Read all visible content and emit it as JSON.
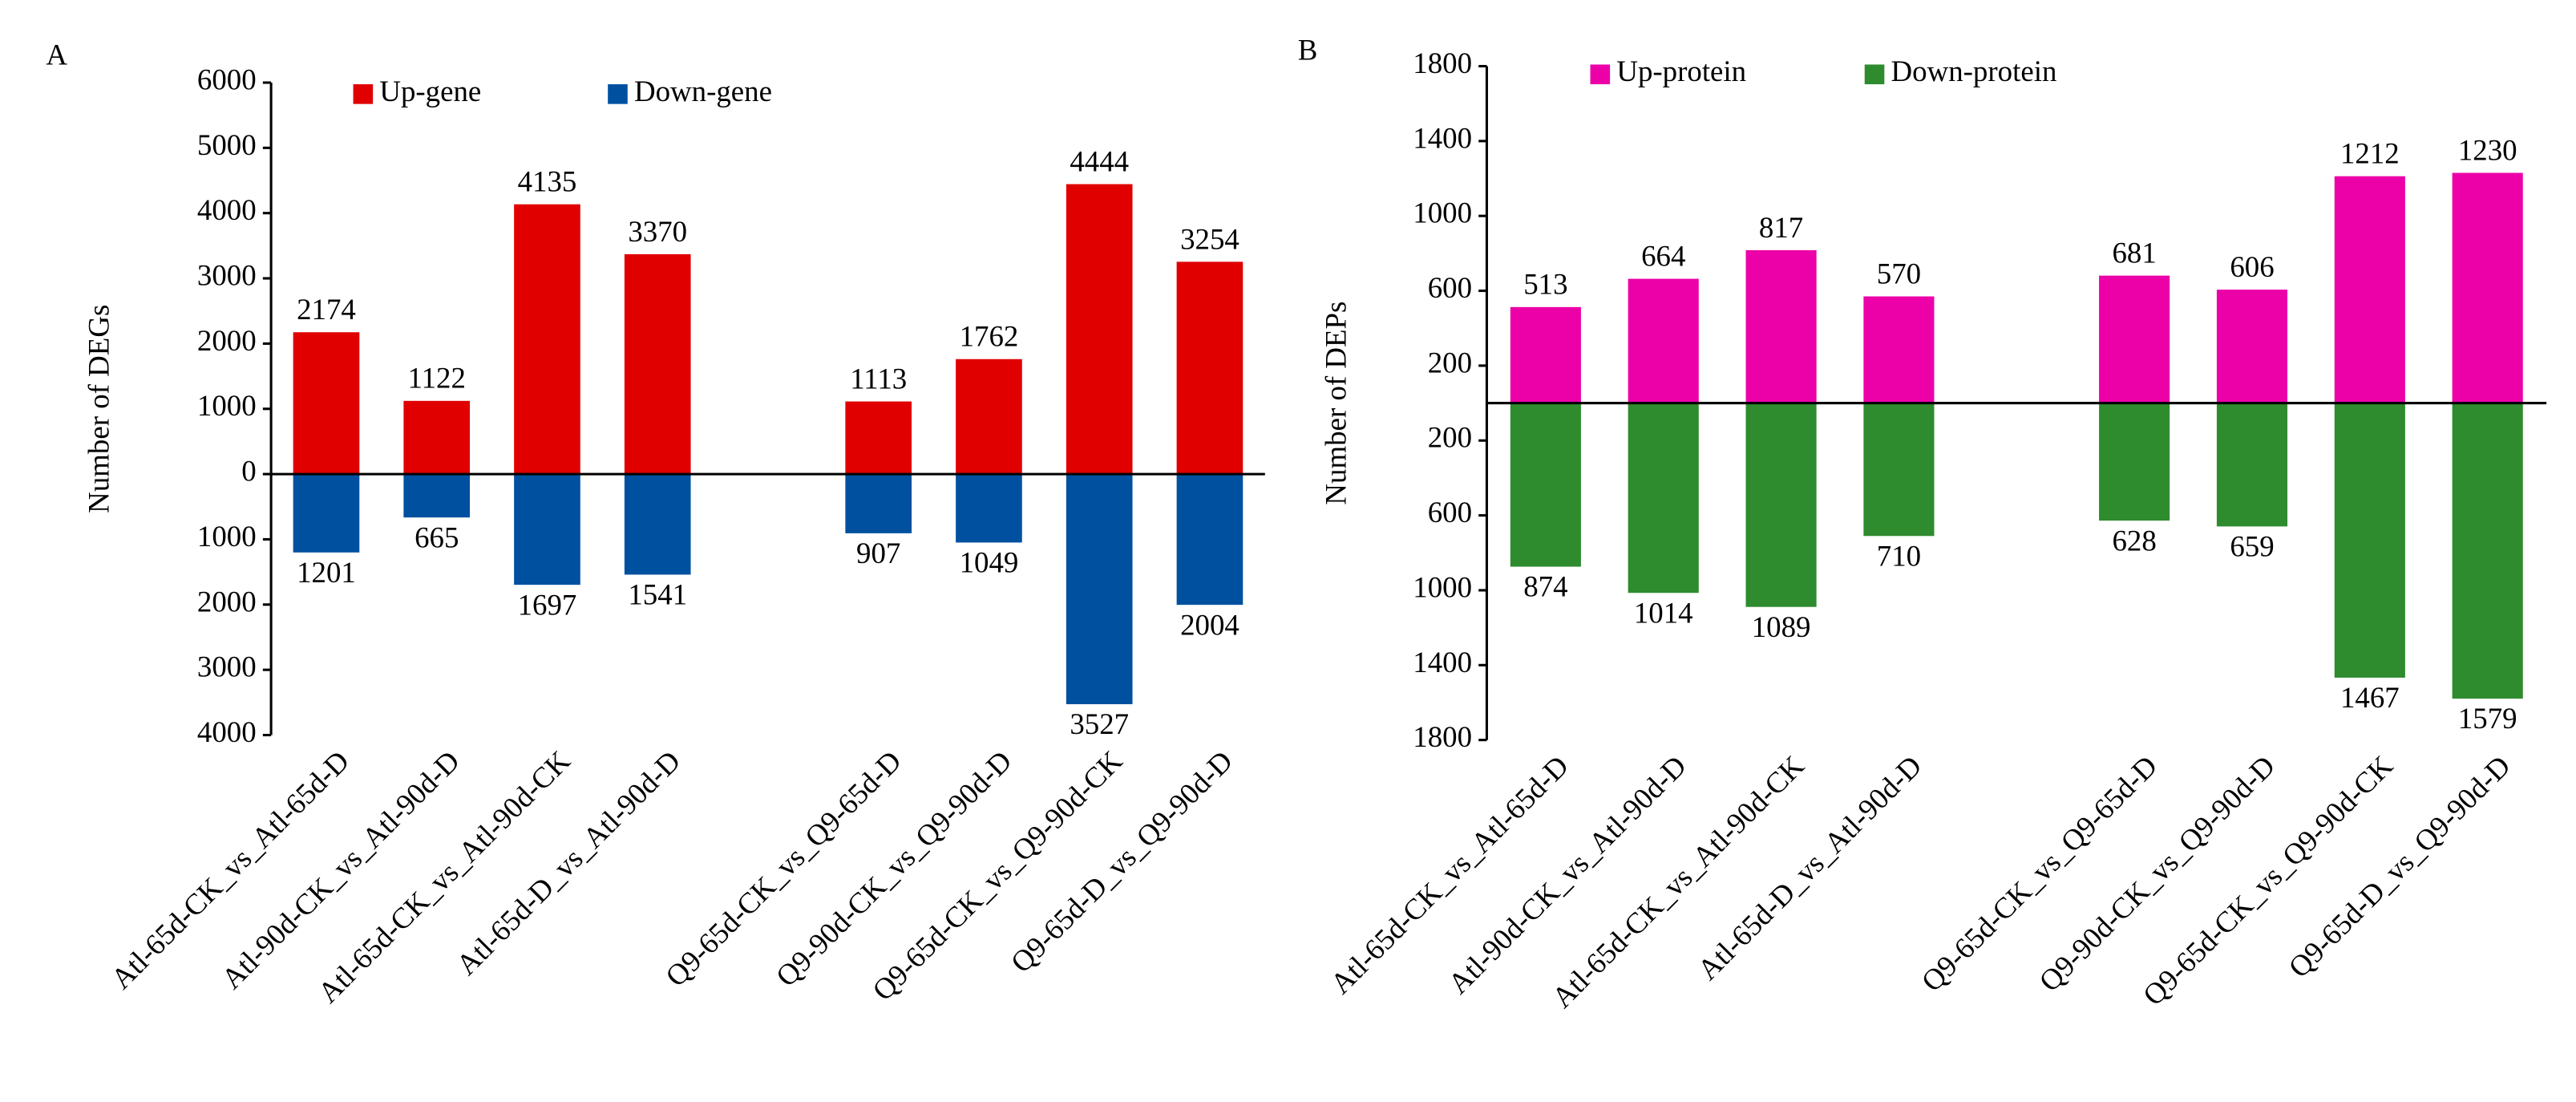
{
  "chart_data": [
    {
      "type": "bar",
      "panel_label": "A",
      "ylabel": "Number of DEGs",
      "categories": [
        "Atl-65d-CK_vs_Atl-65d-D",
        "Atl-90d-CK_vs_Atl-90d-D",
        "Atl-65d-CK_vs_Atl-90d-CK",
        "Atl-65d-D_vs_Atl-90d-D",
        null,
        "Q9-65d-CK_vs_Q9-65d-D",
        "Q9-90d-CK_vs_Q9-90d-D",
        "Q9-65d-CK_vs_Q9-90d-CK",
        "Q9-65d-D_vs_Q9-90d-D"
      ],
      "series": [
        {
          "name": "Up-gene",
          "color": "#e00000",
          "values": [
            2174,
            1122,
            4135,
            3370,
            null,
            1113,
            1762,
            4444,
            3254
          ]
        },
        {
          "name": "Down-gene",
          "color": "#0050a0",
          "values": [
            -1201,
            -665,
            -1697,
            -1541,
            null,
            -907,
            -1049,
            -3527,
            -2004
          ],
          "value_labels": [
            "1201",
            "665",
            "1697",
            "1541",
            null,
            "907",
            "1049",
            "3527",
            "2004"
          ]
        }
      ],
      "ylim": [
        -4000,
        6000
      ],
      "yticks": [
        6000,
        5000,
        4000,
        3000,
        2000,
        1000,
        0,
        {
          "value": -1000,
          "label": "1000"
        },
        {
          "value": -2000,
          "label": "2000"
        },
        {
          "value": -3000,
          "label": "3000"
        },
        {
          "value": -4000,
          "label": "4000"
        }
      ],
      "legend": "top"
    },
    {
      "type": "bar",
      "panel_label": "B",
      "ylabel": "Number of DEPs",
      "categories": [
        "Atl-65d-CK_vs_Atl-65d-D",
        "Atl-90d-CK_vs_Atl-90d-D",
        "Atl-65d-CK_vs_Atl-90d-CK",
        "Atl-65d-D_vs_Atl-90d-D",
        null,
        "Q9-65d-CK_vs_Q9-65d-D",
        "Q9-90d-CK_vs_Q9-90d-D",
        "Q9-65d-CK_vs_Q9-90d-CK",
        "Q9-65d-D_vs_Q9-90d-D"
      ],
      "series": [
        {
          "name": "Up-protein",
          "color": "#ec00a8",
          "values": [
            513,
            664,
            817,
            570,
            null,
            681,
            606,
            1212,
            1230
          ]
        },
        {
          "name": "Down-protein",
          "color": "#2e8b2e",
          "values": [
            -874,
            -1014,
            -1089,
            -710,
            null,
            -628,
            -659,
            -1467,
            -1579
          ],
          "value_labels": [
            "874",
            "1014",
            "1089",
            "710",
            null,
            "628",
            "659",
            "1467",
            "1579"
          ]
        }
      ],
      "ylim": [
        -1800,
        1800
      ],
      "yticks": [
        1800,
        1400,
        1000,
        600,
        200,
        {
          "value": -200,
          "label": "200"
        },
        {
          "value": -600,
          "label": "600"
        },
        {
          "value": -1000,
          "label": "1000"
        },
        {
          "value": -1400,
          "label": "1400"
        },
        {
          "value": -1800,
          "label": "1800"
        }
      ],
      "legend": "top"
    }
  ]
}
